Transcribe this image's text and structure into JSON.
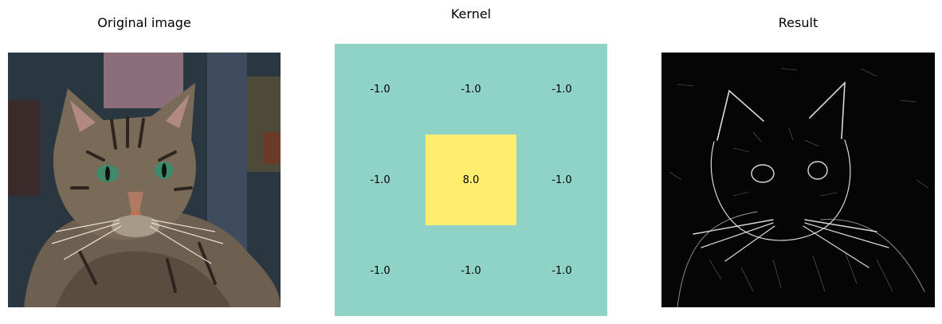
{
  "panels": {
    "original": {
      "title": "Original image"
    },
    "kernel": {
      "title": "Kernel"
    },
    "result": {
      "title": "Result"
    }
  },
  "kernel": {
    "matrix": [
      [
        "-1.0",
        "-1.0",
        "-1.0"
      ],
      [
        "-1.0",
        "8.0",
        "-1.0"
      ],
      [
        "-1.0",
        "-1.0",
        "-1.0"
      ]
    ],
    "colors": {
      "negative": "#8fd3c7",
      "positive": "#ffed6f"
    }
  }
}
